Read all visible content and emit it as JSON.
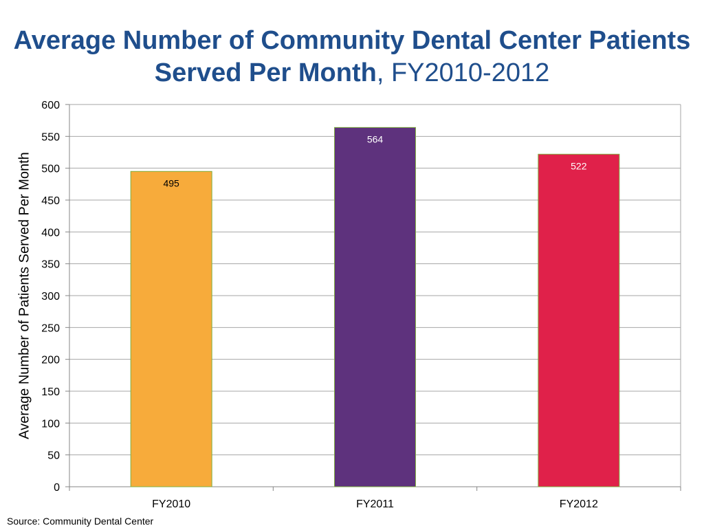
{
  "title": {
    "bold_part": "Average Number of Community Dental Center Patients Served Per Month",
    "normal_part": ", FY2010-2012"
  },
  "source": "Source: Community Dental Center",
  "chart_data": {
    "type": "bar",
    "title": "Average Number of Community Dental Center Patients Served Per Month, FY2010-2012",
    "xlabel": "",
    "ylabel": "Average Number of Patients Served Per Month",
    "categories": [
      "FY2010",
      "FY2011",
      "FY2012"
    ],
    "values": [
      495,
      564,
      522
    ],
    "data_labels": [
      "495",
      "564",
      "522"
    ],
    "bar_colors": [
      "#f7ab3b",
      "#5e327d",
      "#e0214a"
    ],
    "label_colors": [
      "#000000",
      "#ffffff",
      "#ffffff"
    ],
    "ylim": [
      0,
      600
    ],
    "yticks": [
      0,
      50,
      100,
      150,
      200,
      250,
      300,
      350,
      400,
      450,
      500,
      550,
      600
    ],
    "grid": true,
    "legend": "none"
  }
}
